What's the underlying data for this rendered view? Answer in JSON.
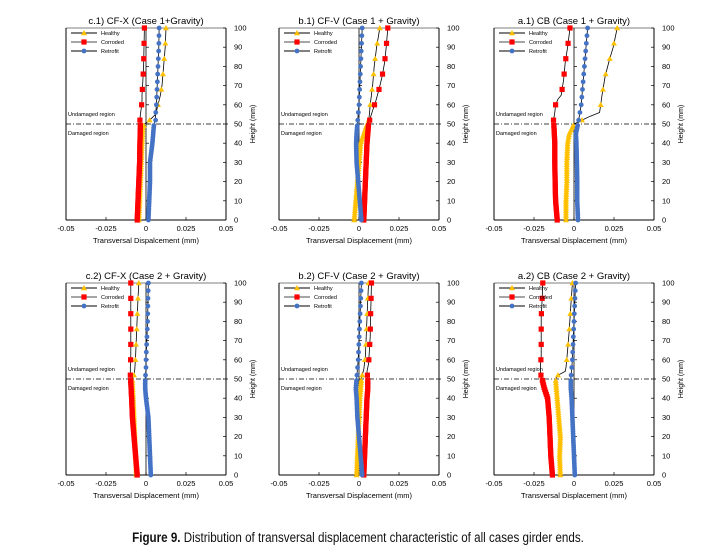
{
  "caption": {
    "label": "Figure 9.",
    "text": "Distribution of transversal displacement characteristic of all cases girder ends."
  },
  "colors": {
    "healthy": "#FFC000",
    "corroded": "#FF0000",
    "retrofit": "#4472C4",
    "axis": "#000000"
  },
  "chart_data": [
    {
      "id": "c1",
      "type": "line",
      "title": "c.1) CF-X (Case 1+Gravity)",
      "xlabel": "Transversal Dispalcement (mm)",
      "ylabel": "Height (mm)",
      "xlim": [
        -0.05,
        0.05
      ],
      "ylim": [
        0,
        100
      ],
      "xticks": [
        "-0.05",
        "-0.025",
        "0",
        "0.025",
        "0.05"
      ],
      "yticks": [
        "0",
        "10",
        "20",
        "30",
        "40",
        "50",
        "60",
        "70",
        "80",
        "90",
        "100"
      ],
      "legend": [
        "Healthy",
        "Corroded",
        "Retrofit"
      ],
      "legend_position": "top-left",
      "region_line_y": 50,
      "region_labels": [
        "Undamaged region",
        "Damaged region"
      ],
      "series": [
        {
          "name": "Healthy",
          "x": [
            -0.0045,
            -0.004,
            -0.0035,
            -0.003,
            -0.0025,
            -0.002,
            -0.001,
            0.001,
            0.006,
            0.0075,
            0.009,
            0.01,
            0.011,
            0.0115,
            0.012,
            0.0125
          ],
          "y": [
            0,
            10,
            20,
            30,
            40,
            48,
            50,
            51,
            55,
            60,
            65,
            70,
            80,
            85,
            90,
            100
          ]
        },
        {
          "name": "Corroded",
          "x": [
            -0.0055,
            -0.005,
            -0.0045,
            -0.004,
            -0.0038,
            -0.0035,
            -0.0038,
            -0.0035,
            -0.003,
            -0.0025,
            -0.0025,
            -0.002,
            -0.0015,
            -0.001
          ],
          "y": [
            0,
            10,
            20,
            30,
            40,
            50,
            52,
            55,
            58,
            62,
            65,
            72,
            80,
            100
          ]
        },
        {
          "name": "Retrofit",
          "x": [
            0.0015,
            0.002,
            0.0025,
            0.0025,
            0.004,
            0.005,
            0.006,
            0.006,
            0.0065,
            0.007,
            0.0075,
            0.008,
            0.0082
          ],
          "y": [
            0,
            10,
            20,
            30,
            40,
            50,
            52,
            55,
            60,
            70,
            80,
            90,
            100
          ]
        }
      ]
    },
    {
      "id": "b1",
      "type": "line",
      "title": "b.1) CF-V (Case 1 + Gravity)",
      "xlabel": "Transversal Displacement (mm)",
      "ylabel": "Height (mm)",
      "xlim": [
        -0.05,
        0.05
      ],
      "ylim": [
        0,
        100
      ],
      "xticks": [
        "-0.05",
        "-0.025",
        "0",
        "0.025",
        "0.05"
      ],
      "yticks": [
        "0",
        "10",
        "20",
        "30",
        "40",
        "50",
        "60",
        "70",
        "80",
        "90",
        "100"
      ],
      "legend": [
        "Healthy",
        "Corroded",
        "Retrofit"
      ],
      "legend_position": "top-left",
      "region_line_y": 50,
      "region_labels": [
        "Undamaged region",
        "Damaged region"
      ],
      "series": [
        {
          "name": "Healthy",
          "x": [
            -0.003,
            -0.002,
            -0.001,
            0.0,
            0.001,
            0.003,
            0.005,
            0.006,
            0.0065,
            0.007,
            0.0085,
            0.0095,
            0.011,
            0.012,
            0.013
          ],
          "y": [
            0,
            10,
            20,
            30,
            40,
            45,
            50,
            52,
            55,
            60,
            70,
            80,
            90,
            95,
            100
          ]
        },
        {
          "name": "Corroded",
          "x": [
            0.003,
            0.0035,
            0.004,
            0.0045,
            0.005,
            0.0055,
            0.006,
            0.007,
            0.0085,
            0.0105,
            0.0125,
            0.0145,
            0.016,
            0.017,
            0.018
          ],
          "y": [
            0,
            10,
            20,
            30,
            40,
            45,
            50,
            53,
            57,
            62,
            68,
            75,
            82,
            90,
            100
          ]
        },
        {
          "name": "Retrofit",
          "x": [
            0.0015,
            0.0005,
            -0.0005,
            -0.0015,
            -0.0018,
            -0.0015,
            -0.001,
            -0.0005,
            0.0,
            0.0005,
            0.001,
            0.0015,
            0.002
          ],
          "y": [
            0,
            10,
            20,
            30,
            40,
            45,
            50,
            55,
            60,
            70,
            80,
            90,
            100
          ]
        }
      ]
    },
    {
      "id": "a1",
      "type": "line",
      "title": "a.1) CB (Case 1 + Gravity)",
      "xlabel": "Transversal Displacement (mm)",
      "ylabel": "Height (mm)",
      "xlim": [
        -0.05,
        0.05
      ],
      "ylim": [
        0,
        100
      ],
      "xticks": [
        "-0.05",
        "-0.025",
        "0",
        "0.025",
        "0.05"
      ],
      "yticks": [
        "0",
        "10",
        "20",
        "30",
        "40",
        "50",
        "60",
        "70",
        "80",
        "90",
        "100"
      ],
      "legend": [
        "Healthy",
        "Corroded",
        "Retrofit"
      ],
      "legend_position": "top-left",
      "region_line_y": 50,
      "region_labels": [
        "Undamaged region",
        "Damaged region"
      ],
      "series": [
        {
          "name": "Healthy",
          "x": [
            -0.005,
            -0.005,
            -0.0045,
            -0.0045,
            -0.004,
            -0.003,
            0.0,
            0.005,
            0.01,
            0.016,
            0.0175,
            0.0195,
            0.022,
            0.0245,
            0.027
          ],
          "y": [
            0,
            10,
            20,
            30,
            40,
            45,
            50,
            52,
            54,
            56,
            65,
            75,
            83,
            90,
            100
          ]
        },
        {
          "name": "Corroded",
          "x": [
            -0.0105,
            -0.0115,
            -0.0118,
            -0.012,
            -0.012,
            -0.0125,
            -0.0128,
            -0.012,
            -0.0115,
            -0.01,
            -0.008,
            -0.0065,
            -0.0055,
            -0.004,
            -0.0025
          ],
          "y": [
            0,
            10,
            20,
            30,
            40,
            48,
            52,
            56,
            60,
            63,
            65,
            73,
            82,
            90,
            100
          ]
        },
        {
          "name": "Retrofit",
          "x": [
            0.0025,
            0.002,
            0.002,
            0.0018,
            0.0015,
            0.0012,
            0.0025,
            0.0035,
            0.0045,
            0.0055,
            0.0065,
            0.0075,
            0.0085
          ],
          "y": [
            0,
            10,
            20,
            30,
            40,
            45,
            50,
            55,
            60,
            70,
            80,
            90,
            100
          ]
        }
      ]
    },
    {
      "id": "c2",
      "type": "line",
      "title": "c.2) CF-X (Case 2 + Gravity)",
      "xlabel": "Transversal Displacement (mm)",
      "ylabel": "Height (mm)",
      "xlim": [
        -0.05,
        0.05
      ],
      "ylim": [
        0,
        100
      ],
      "xticks": [
        "-0.05",
        "-0.025",
        "0",
        "0.025",
        "0.05"
      ],
      "yticks": [
        "0",
        "10",
        "20",
        "30",
        "40",
        "50",
        "60",
        "70",
        "80",
        "90",
        "100"
      ],
      "legend": [
        "Healthy",
        "Corroded",
        "Retrofit"
      ],
      "legend_position": "top-left",
      "region_line_y": 50,
      "region_labels": [
        "Undamaged region",
        "Damaged region"
      ],
      "series": [
        {
          "name": "Healthy",
          "x": [
            -0.006,
            -0.0065,
            -0.007,
            -0.0075,
            -0.008,
            -0.0085,
            -0.0085,
            -0.0075,
            -0.007,
            -0.0065,
            -0.006,
            -0.0055,
            -0.005,
            -0.0045
          ],
          "y": [
            0,
            10,
            20,
            30,
            40,
            48,
            50,
            52,
            55,
            62,
            72,
            82,
            92,
            100
          ]
        },
        {
          "name": "Corroded",
          "x": [
            -0.0055,
            -0.0065,
            -0.0075,
            -0.0085,
            -0.009,
            -0.0095,
            -0.0098,
            -0.0098,
            -0.0095,
            -0.0095,
            -0.0095,
            -0.0095,
            -0.0095
          ],
          "y": [
            0,
            10,
            20,
            30,
            40,
            48,
            52,
            56,
            62,
            72,
            82,
            90,
            100
          ]
        },
        {
          "name": "Retrofit",
          "x": [
            0.003,
            0.0025,
            0.002,
            0.0015,
            0.0,
            -0.0005,
            -0.0005,
            0.0,
            0.0,
            0.0005,
            0.001,
            0.0012,
            0.0015
          ],
          "y": [
            0,
            10,
            20,
            30,
            40,
            45,
            50,
            55,
            60,
            70,
            80,
            90,
            100
          ]
        }
      ]
    },
    {
      "id": "b2",
      "type": "line",
      "title": "b.2) CF-V (Case 2 + Gravity)",
      "xlabel": "Transversal Displacement (mm)",
      "ylabel": "Height (mm)",
      "xlim": [
        -0.05,
        0.05
      ],
      "ylim": [
        0,
        100
      ],
      "xticks": [
        "-0.05",
        "-0.025",
        "0",
        "0.025",
        "0.05"
      ],
      "yticks": [
        "0",
        "10",
        "20",
        "30",
        "40",
        "50",
        "60",
        "70",
        "80",
        "90",
        "100"
      ],
      "legend": [
        "Healthy",
        "Corroded",
        "Retrofit"
      ],
      "legend_position": "top-left",
      "region_line_y": 50,
      "region_labels": [
        "Undamaged region",
        "Damaged region"
      ],
      "series": [
        {
          "name": "Healthy",
          "x": [
            -0.0015,
            -0.001,
            -0.0005,
            0.0,
            0.0005,
            0.001,
            0.0015,
            0.002,
            0.003,
            0.004,
            0.0045,
            0.005,
            0.0055,
            0.006
          ],
          "y": [
            0,
            10,
            20,
            30,
            40,
            45,
            50,
            52,
            55,
            62,
            72,
            82,
            92,
            100
          ]
        },
        {
          "name": "Corroded",
          "x": [
            0.003,
            0.0035,
            0.004,
            0.0045,
            0.005,
            0.0055,
            0.0055,
            0.005,
            0.006,
            0.0065,
            0.007,
            0.0072,
            0.0075,
            0.0078
          ],
          "y": [
            0,
            10,
            20,
            30,
            40,
            45,
            50,
            54,
            58,
            65,
            72,
            82,
            90,
            100
          ]
        },
        {
          "name": "Retrofit",
          "x": [
            0.002,
            0.001,
            0.0,
            -0.001,
            -0.0015,
            -0.002,
            -0.0015,
            -0.001,
            -0.0005,
            0.0,
            0.0005,
            0.001,
            0.0015
          ],
          "y": [
            0,
            10,
            20,
            30,
            40,
            45,
            50,
            55,
            60,
            70,
            80,
            90,
            100
          ]
        }
      ]
    },
    {
      "id": "a2",
      "type": "line",
      "title": "a.2) CB (Case 2 + Gravity)",
      "xlabel": "Transversal Displacement (mm)",
      "ylabel": "Height (mm)",
      "xlim": [
        -0.05,
        0.05
      ],
      "ylim": [
        0,
        100
      ],
      "xticks": [
        "-0.05",
        "-0.025",
        "0",
        "0.025",
        "0.05"
      ],
      "yticks": [
        "0",
        "10",
        "20",
        "30",
        "40",
        "50",
        "60",
        "70",
        "80",
        "90",
        "100"
      ],
      "legend": [
        "Healthy",
        "Corroded",
        "Retrofit"
      ],
      "legend_position": "top-left",
      "region_line_y": 50,
      "region_labels": [
        "Undamaged region",
        "Damaged region"
      ],
      "series": [
        {
          "name": "Healthy",
          "x": [
            -0.0085,
            -0.009,
            -0.0085,
            -0.0095,
            -0.0105,
            -0.011,
            -0.0115,
            -0.01,
            -0.0055,
            -0.005,
            -0.004,
            -0.003,
            -0.002,
            -0.001
          ],
          "y": [
            0,
            10,
            20,
            30,
            40,
            45,
            50,
            52,
            54,
            56,
            65,
            75,
            88,
            100
          ]
        },
        {
          "name": "Corroded",
          "x": [
            -0.0135,
            -0.0145,
            -0.015,
            -0.0155,
            -0.0165,
            -0.0185,
            -0.02,
            -0.021,
            -0.021,
            -0.0205,
            -0.0205,
            -0.0205,
            -0.02,
            -0.0195
          ],
          "y": [
            0,
            10,
            20,
            30,
            40,
            45,
            50,
            53,
            57,
            62,
            72,
            82,
            90,
            100
          ]
        },
        {
          "name": "Retrofit",
          "x": [
            0.0005,
            0.0,
            -0.0005,
            -0.001,
            -0.0015,
            -0.002,
            -0.002,
            -0.0015,
            -0.001,
            -0.0005,
            0.0,
            0.0005,
            0.001
          ],
          "y": [
            0,
            10,
            20,
            30,
            40,
            45,
            50,
            55,
            60,
            70,
            80,
            90,
            100
          ]
        }
      ]
    }
  ]
}
